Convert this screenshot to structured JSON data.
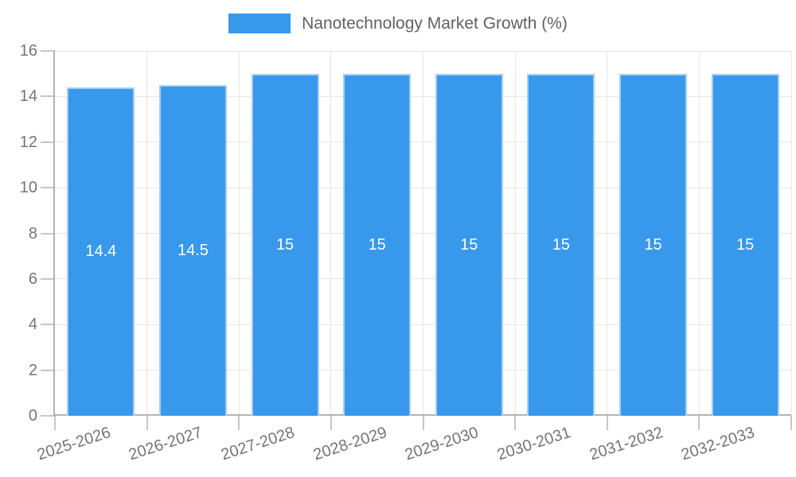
{
  "legend": {
    "label": "Nanotechnology Market Growth (%)"
  },
  "colors": {
    "bar": "#3898EC",
    "bar_border": "#A4CEF4",
    "grid": "#E6E6E6",
    "axis": "#B3B3B3",
    "tick": "#C6C6C6",
    "tick_text": "#757575",
    "legend_text": "#616161",
    "value_text": "#FFFFFF"
  },
  "chart_data": {
    "type": "bar",
    "title": "Nanotechnology Market Growth (%)",
    "categories": [
      "2025-2026",
      "2026-2027",
      "2027-2028",
      "2028-2029",
      "2029-2030",
      "2030-2031",
      "2031-2032",
      "2032-2033"
    ],
    "values": [
      14.4,
      14.5,
      15,
      15,
      15,
      15,
      15,
      15
    ],
    "value_labels": [
      "14.4",
      "14.5",
      "15",
      "15",
      "15",
      "15",
      "15",
      "15"
    ],
    "yticks": [
      0,
      2,
      4,
      6,
      8,
      10,
      12,
      14,
      16
    ],
    "ylim": [
      0,
      16
    ],
    "xlabel": "",
    "ylabel": "",
    "grid": true,
    "legend_position": "top",
    "bar_label_position": "center"
  }
}
